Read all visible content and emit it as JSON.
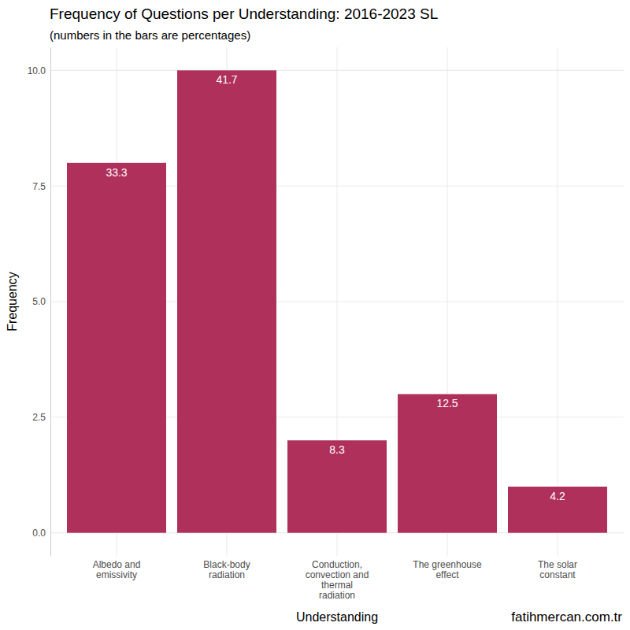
{
  "chart_data": {
    "type": "bar",
    "title": "Frequency of Questions per Understanding: 2016-2023 SL",
    "subtitle": "(numbers in the bars are percentages)",
    "x_label": "Understanding",
    "y_label": "Frequency",
    "caption": "fatihmercan.com.tr",
    "categories": [
      "Albedo and emissivity",
      "Black-body radiation",
      "Conduction, convection and thermal radiation",
      "The greenhouse effect",
      "The solar constant"
    ],
    "values": [
      8,
      10,
      2,
      3,
      1
    ],
    "percentages": [
      33.3,
      41.7,
      8.3,
      12.5,
      4.2
    ],
    "color": "#b0305c",
    "ylim": [
      -0.5,
      10.5
    ],
    "yticks": [
      {
        "value": 0,
        "label": "0.0"
      },
      {
        "value": 2.5,
        "label": "2.5"
      },
      {
        "value": 5,
        "label": "5.0"
      },
      {
        "value": 7.5,
        "label": "7.5"
      },
      {
        "value": 10,
        "label": "10.0"
      }
    ],
    "grid": true
  }
}
